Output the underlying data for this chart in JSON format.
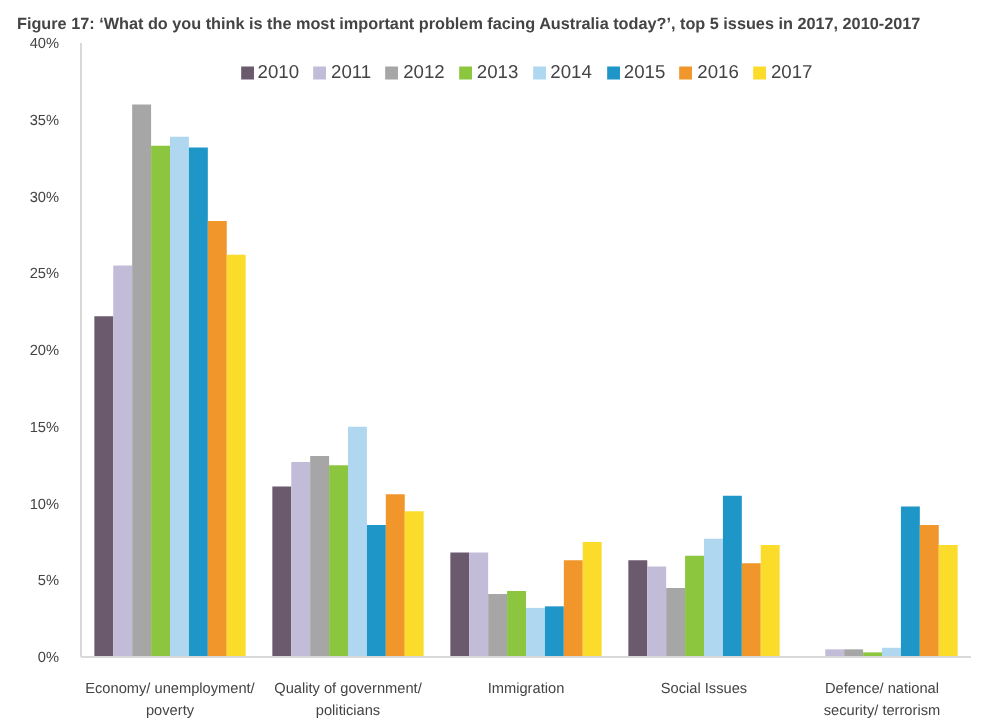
{
  "chart_data": {
    "type": "bar",
    "title": "Figure 17: ‘What do you think is the most important problem facing Australia today?’, top 5 issues in 2017, 2010-2017",
    "categories": [
      "Economy/ unemployment/\npoverty",
      "Quality of government/\npoliticians",
      "Immigration",
      "Social Issues",
      "Defence/ national\nsecurity/ terrorism"
    ],
    "series": [
      {
        "name": "2010",
        "color": "#6b5a6e",
        "values": [
          22.2,
          11.1,
          6.8,
          6.3,
          null
        ]
      },
      {
        "name": "2011",
        "color": "#c3bcd8",
        "values": [
          25.5,
          12.7,
          6.8,
          5.9,
          0.5
        ]
      },
      {
        "name": "2012",
        "color": "#a6a6a6",
        "values": [
          36.0,
          13.1,
          4.1,
          4.5,
          0.5
        ]
      },
      {
        "name": "2013",
        "color": "#8cc63f",
        "values": [
          33.3,
          12.5,
          4.3,
          6.6,
          0.3
        ]
      },
      {
        "name": "2014",
        "color": "#afd8f0",
        "values": [
          33.9,
          15.0,
          3.2,
          7.7,
          0.6
        ]
      },
      {
        "name": "2015",
        "color": "#1e96c8",
        "values": [
          33.2,
          8.6,
          3.3,
          10.5,
          9.8
        ]
      },
      {
        "name": "2016",
        "color": "#f0962a",
        "values": [
          28.4,
          10.6,
          6.3,
          6.1,
          8.6
        ]
      },
      {
        "name": "2017",
        "color": "#fcdc2a",
        "values": [
          26.2,
          9.5,
          7.5,
          7.3,
          7.3
        ]
      }
    ],
    "ylim": [
      0,
      40
    ],
    "yticks": [
      {
        "value": 0,
        "label": "0%"
      },
      {
        "value": 5,
        "label": "5%"
      },
      {
        "value": 10,
        "label": "10%"
      },
      {
        "value": 15,
        "label": "15%"
      },
      {
        "value": 20,
        "label": "20%"
      },
      {
        "value": 25,
        "label": "25%"
      },
      {
        "value": 30,
        "label": "30%"
      },
      {
        "value": 35,
        "label": "35%"
      },
      {
        "value": 40,
        "label": "40%"
      }
    ],
    "legend": "top",
    "grid": false
  }
}
